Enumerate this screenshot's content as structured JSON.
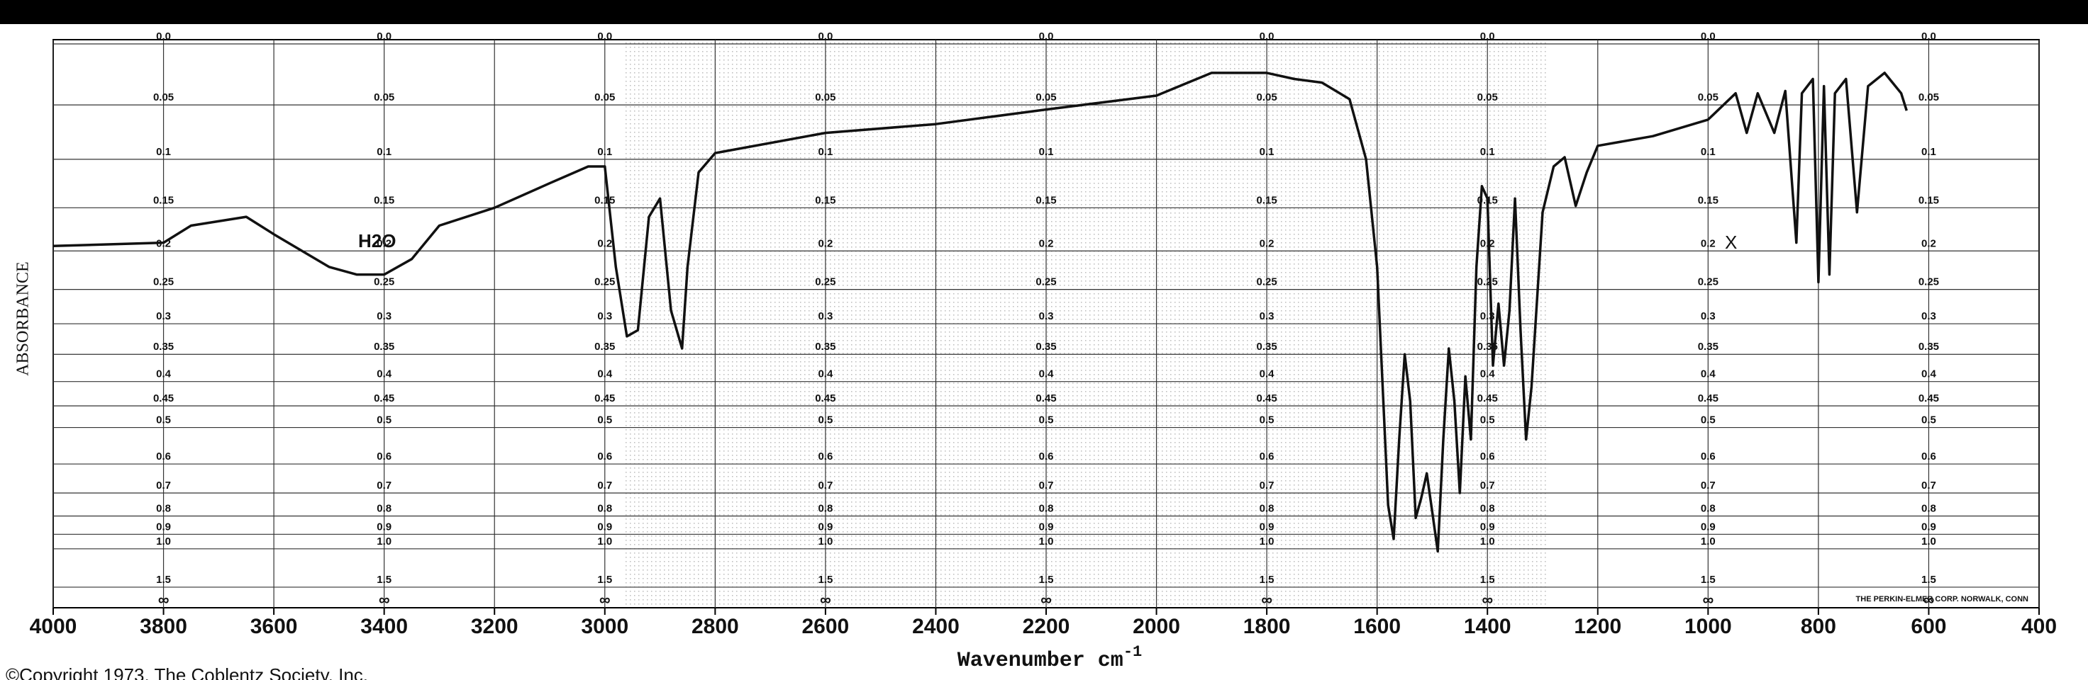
{
  "chart_data": {
    "type": "line",
    "ylabel": "ABSORBANCE",
    "xlabel": "Wavenumber cm",
    "xlabel_superscript": "-1",
    "yscale": "absorbance",
    "bottom_label": "∞",
    "annotations": [
      "H2O",
      "X"
    ],
    "maker_note": "THE PERKIN-ELMER CORP. NORWALK, CONN",
    "copyright": "©Copyright 1973, The Coblentz Society, Inc.",
    "xlim": [
      4000,
      400
    ],
    "xticks": [
      4000,
      3800,
      3600,
      3400,
      3200,
      3000,
      2800,
      2600,
      2400,
      2200,
      2000,
      1800,
      1600,
      1400,
      1200,
      1000,
      800,
      600,
      400
    ],
    "ylim": [
      0,
      1.5
    ],
    "yticks": [
      {
        "value": 0,
        "label": "0.0"
      },
      0.05,
      0.1,
      0.15,
      0.2,
      0.25,
      0.3,
      0.35,
      0.4,
      0.45,
      0.5,
      0.6,
      0.7,
      0.8,
      0.9,
      {
        "value": 1,
        "label": "1.0"
      },
      1.5
    ],
    "grid": true,
    "series": [
      {
        "color": "#111111",
        "x": [
          4000,
          3800,
          3750,
          3650,
          3600,
          3500,
          3450,
          3400,
          3350,
          3300,
          3200,
          3100,
          3030,
          3000,
          2980,
          2960,
          2940,
          2920,
          2900,
          2880,
          2860,
          2850,
          2830,
          2800,
          2600,
          2400,
          2200,
          2000,
          1900,
          1800,
          1750,
          1700,
          1650,
          1620,
          1600,
          1580,
          1570,
          1560,
          1550,
          1540,
          1530,
          1520,
          1510,
          1500,
          1490,
          1480,
          1470,
          1460,
          1450,
          1440,
          1430,
          1420,
          1410,
          1400,
          1390,
          1380,
          1370,
          1360,
          1350,
          1340,
          1330,
          1320,
          1300,
          1280,
          1260,
          1240,
          1220,
          1200,
          1100,
          1000,
          950,
          930,
          910,
          880,
          860,
          840,
          830,
          810,
          800,
          790,
          780,
          770,
          750,
          730,
          710,
          680,
          650,
          640
        ],
        "values": [
          0.194,
          0.19,
          0.17,
          0.16,
          0.18,
          0.22,
          0.23,
          0.23,
          0.21,
          0.17,
          0.15,
          0.124,
          0.107,
          0.107,
          0.22,
          0.32,
          0.31,
          0.16,
          0.14,
          0.28,
          0.34,
          0.22,
          0.113,
          0.094,
          0.075,
          0.067,
          0.054,
          0.042,
          0.023,
          0.023,
          0.028,
          0.031,
          0.045,
          0.1,
          0.22,
          0.75,
          0.93,
          0.53,
          0.35,
          0.44,
          0.81,
          0.72,
          0.63,
          0.78,
          1.02,
          0.53,
          0.34,
          0.44,
          0.7,
          0.39,
          0.53,
          0.22,
          0.127,
          0.14,
          0.37,
          0.27,
          0.37,
          0.28,
          0.14,
          0.31,
          0.53,
          0.41,
          0.155,
          0.107,
          0.098,
          0.148,
          0.113,
          0.087,
          0.078,
          0.063,
          0.04,
          0.075,
          0.04,
          0.075,
          0.038,
          0.19,
          0.04,
          0.028,
          0.24,
          0.034,
          0.23,
          0.04,
          0.028,
          0.155,
          0.034,
          0.023,
          0.04,
          0.055
        ]
      }
    ]
  }
}
